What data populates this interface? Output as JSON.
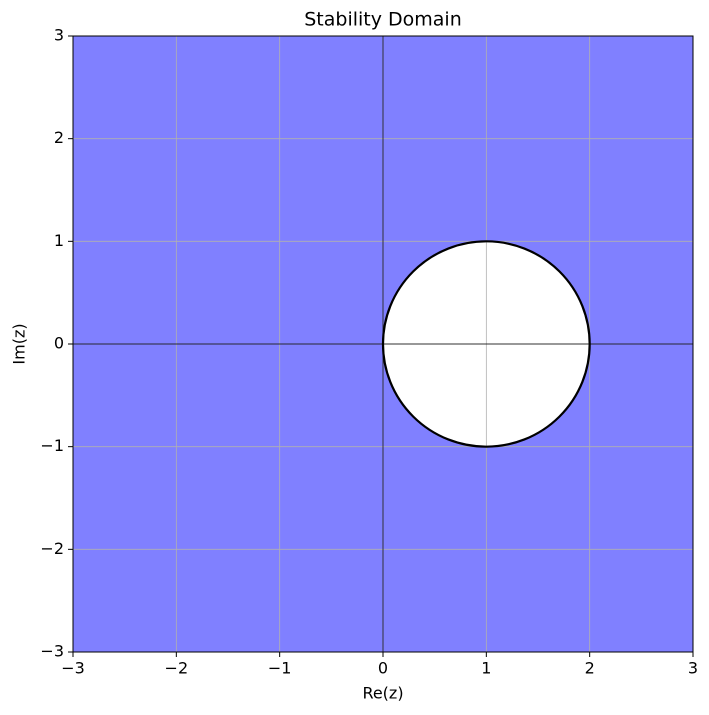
{
  "chart_data": {
    "type": "stability-domain",
    "title": "Stability Domain",
    "xlabel": "Re(z)",
    "ylabel": "Im(z)",
    "xlim": [
      -3,
      3
    ],
    "ylim": [
      -3,
      3
    ],
    "xticks": [
      {
        "value": -3,
        "label": "−3"
      },
      {
        "value": -2,
        "label": "−2"
      },
      {
        "value": -1,
        "label": "−1"
      },
      0,
      1,
      2,
      3
    ],
    "yticks": [
      {
        "value": -3,
        "label": "−3"
      },
      {
        "value": -2,
        "label": "−2"
      },
      {
        "value": -1,
        "label": "−1"
      },
      0,
      1,
      2,
      3
    ],
    "grid": true,
    "fill_color": "#8080ff",
    "axhline": 0,
    "axvline": 0,
    "circle": {
      "center": [
        1,
        0
      ],
      "radius": 1,
      "color": "#ffffff",
      "edgecolor": "#000000"
    }
  }
}
